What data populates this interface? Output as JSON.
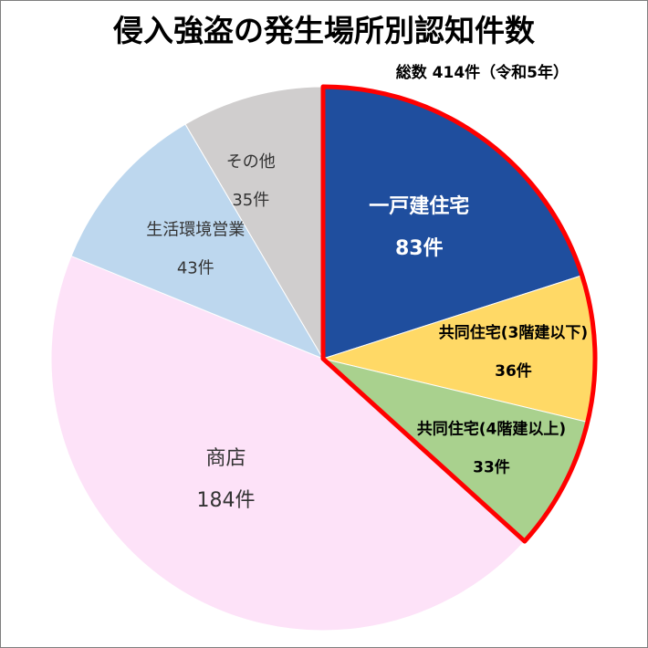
{
  "title": "侵入強盗の発生場所別認知件数",
  "subtitle": "総数 414件（令和5年）",
  "chart_data": {
    "type": "pie",
    "title": "侵入強盗の発生場所別認知件数",
    "total_label": "総数 414件（令和5年）",
    "slices": [
      {
        "name": "一戸建住宅",
        "value": 83,
        "value_label": "83件",
        "color": "#1f4e9e",
        "text_color": "#ffffff",
        "highlight": true
      },
      {
        "name": "共同住宅(3階建以下)",
        "value": 36,
        "value_label": "36件",
        "color": "#ffd966",
        "text_color": "#000000",
        "highlight": true
      },
      {
        "name": "共同住宅(4階建以上)",
        "value": 33,
        "value_label": "33件",
        "color": "#a9d18e",
        "text_color": "#000000",
        "highlight": true
      },
      {
        "name": "商店",
        "value": 184,
        "value_label": "184件",
        "color": "#fde2f8",
        "text_color": "#333333",
        "highlight": false
      },
      {
        "name": "生活環境営業",
        "value": 43,
        "value_label": "43件",
        "color": "#bdd7ee",
        "text_color": "#333333",
        "highlight": false
      },
      {
        "name": "その他",
        "value": 35,
        "value_label": "35件",
        "color": "#d0cece",
        "text_color": "#333333",
        "highlight": false
      }
    ],
    "highlight_color": "#ff0000"
  }
}
